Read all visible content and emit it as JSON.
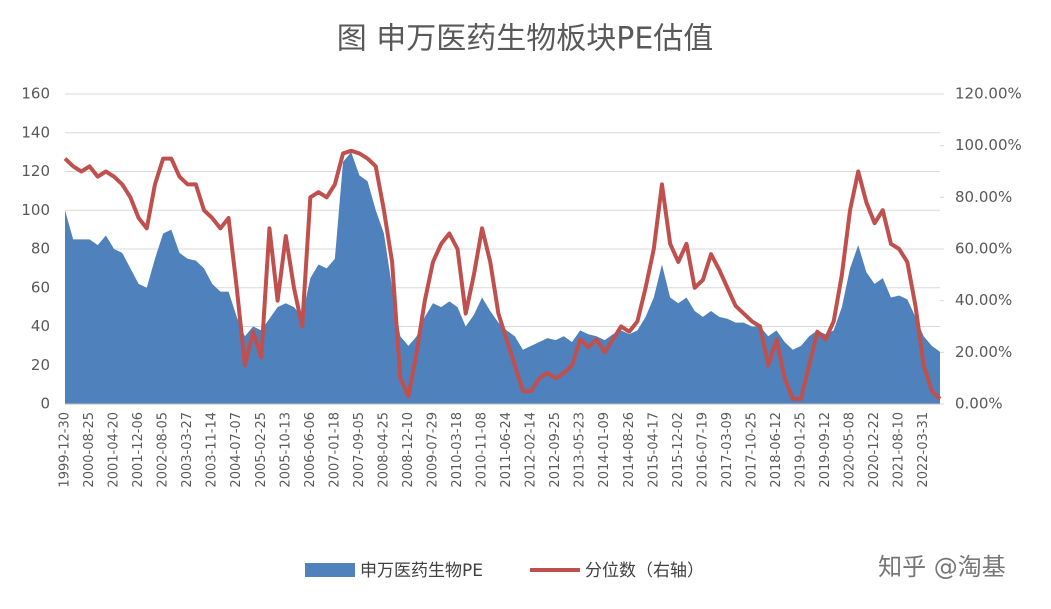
{
  "chart_data": {
    "type": "area_line",
    "title": "图  申万医药生物板块PE估值",
    "watermark": "知乎 @淘基",
    "categories": [
      "1999-12-30",
      null,
      null,
      "2000-08-25",
      null,
      null,
      "2001-04-20",
      null,
      null,
      "2001-12-06",
      null,
      null,
      "2002-08-05",
      null,
      null,
      "2003-03-27",
      null,
      null,
      "2003-11-14",
      null,
      null,
      "2004-07-07",
      null,
      null,
      "2005-02-25",
      null,
      null,
      "2005-10-13",
      null,
      null,
      "2006-06-06",
      null,
      null,
      "2007-01-18",
      null,
      null,
      "2007-09-05",
      null,
      null,
      "2008-04-25",
      null,
      null,
      "2008-12-10",
      null,
      null,
      "2009-07-29",
      null,
      null,
      "2010-03-18",
      null,
      null,
      "2010-11-08",
      null,
      null,
      "2011-06-24",
      null,
      null,
      "2012-02-14",
      null,
      null,
      "2012-09-25",
      null,
      null,
      "2013-05-23",
      null,
      null,
      "2014-01-09",
      null,
      null,
      "2014-08-26",
      null,
      null,
      "2015-04-17",
      null,
      null,
      "2015-12-02",
      null,
      null,
      "2016-07-19",
      null,
      null,
      "2017-03-09",
      null,
      null,
      "2017-10-25",
      null,
      null,
      "2018-06-12",
      null,
      null,
      "2019-01-25",
      null,
      null,
      "2019-09-12",
      null,
      null,
      "2020-05-08",
      null,
      null,
      "2020-12-22",
      null,
      null,
      "2021-08-10",
      null,
      null,
      "2022-03-31",
      null,
      null
    ],
    "series": [
      {
        "name": "申万医药生物PE",
        "color": "#4f81bd",
        "kind": "area",
        "axis": "y",
        "values": [
          100,
          85,
          85,
          85,
          82,
          87,
          80,
          78,
          70,
          62,
          60,
          75,
          88,
          90,
          78,
          75,
          74,
          70,
          62,
          58,
          58,
          45,
          35,
          40,
          38,
          44,
          50,
          52,
          50,
          45,
          65,
          72,
          70,
          75,
          125,
          130,
          118,
          115,
          100,
          88,
          60,
          35,
          30,
          35,
          45,
          52,
          50,
          53,
          50,
          40,
          46,
          55,
          48,
          42,
          38,
          35,
          28,
          30,
          32,
          34,
          33,
          35,
          32,
          38,
          36,
          35,
          33,
          36,
          38,
          36,
          38,
          45,
          55,
          72,
          55,
          52,
          55,
          48,
          45,
          48,
          45,
          44,
          42,
          42,
          40,
          40,
          35,
          38,
          32,
          28,
          30,
          35,
          38,
          36,
          38,
          50,
          70,
          82,
          68,
          62,
          65,
          55,
          56,
          54,
          45,
          35,
          30,
          27
        ]
      },
      {
        "name": "分位数（右轴）",
        "color": "#c0504d",
        "kind": "line",
        "axis": "y2",
        "values": [
          95,
          92,
          90,
          92,
          88,
          90,
          88,
          85,
          80,
          72,
          68,
          85,
          95,
          95,
          88,
          85,
          85,
          75,
          72,
          68,
          72,
          45,
          15,
          28,
          18,
          68,
          40,
          65,
          45,
          30,
          80,
          82,
          80,
          85,
          97,
          98,
          97,
          95,
          92,
          75,
          55,
          10,
          3,
          20,
          40,
          55,
          62,
          66,
          60,
          35,
          50,
          68,
          55,
          35,
          25,
          15,
          5,
          5,
          10,
          12,
          10,
          12,
          15,
          25,
          22,
          25,
          20,
          25,
          30,
          28,
          32,
          45,
          60,
          85,
          62,
          55,
          62,
          45,
          48,
          58,
          52,
          45,
          38,
          35,
          32,
          30,
          15,
          25,
          10,
          2,
          2,
          15,
          28,
          25,
          32,
          50,
          75,
          90,
          78,
          70,
          75,
          62,
          60,
          55,
          38,
          15,
          5,
          2
        ]
      }
    ],
    "ylim": [
      0,
      160
    ],
    "yticks": [
      0,
      20,
      40,
      60,
      80,
      100,
      120,
      140,
      160
    ],
    "y2lim": [
      0,
      120
    ],
    "y2ticks": [
      {
        "value": 0,
        "label": "0.00%"
      },
      {
        "value": 20,
        "label": "20.00%"
      },
      {
        "value": 40,
        "label": "40.00%"
      },
      {
        "value": 60,
        "label": "60.00%"
      },
      {
        "value": 80,
        "label": "80.00%"
      },
      {
        "value": 100,
        "label": "100.00%"
      },
      {
        "value": 120,
        "label": "120.00%"
      }
    ],
    "grid": true
  }
}
